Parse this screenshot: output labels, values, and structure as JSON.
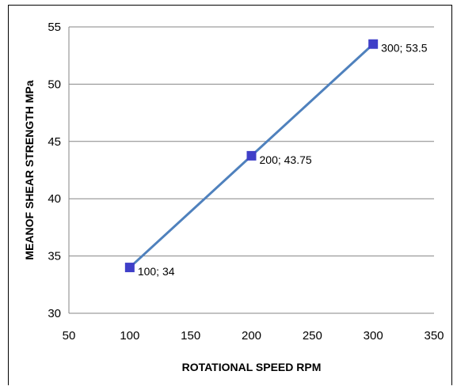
{
  "chart_data": {
    "type": "scatter",
    "title": "",
    "xlabel": "ROTATIONAL SPEED RPM",
    "ylabel": "MEANOF SHEAR STRENGTH  MPa",
    "xlim": [
      50,
      350
    ],
    "ylim": [
      30,
      55
    ],
    "xticks": [
      50,
      100,
      150,
      200,
      250,
      300,
      350
    ],
    "yticks": [
      30,
      35,
      40,
      45,
      50,
      55
    ],
    "grid": "horizontal",
    "legend": "none",
    "series": [
      {
        "x": [
          100,
          200,
          300
        ],
        "y": [
          34,
          43.75,
          53.5
        ],
        "point_labels": [
          "100; 34",
          "200; 43.75",
          "300; 53.5"
        ],
        "marker": "square",
        "marker_color": "#3f3fc8",
        "line_color": "#4f81bd"
      }
    ]
  }
}
